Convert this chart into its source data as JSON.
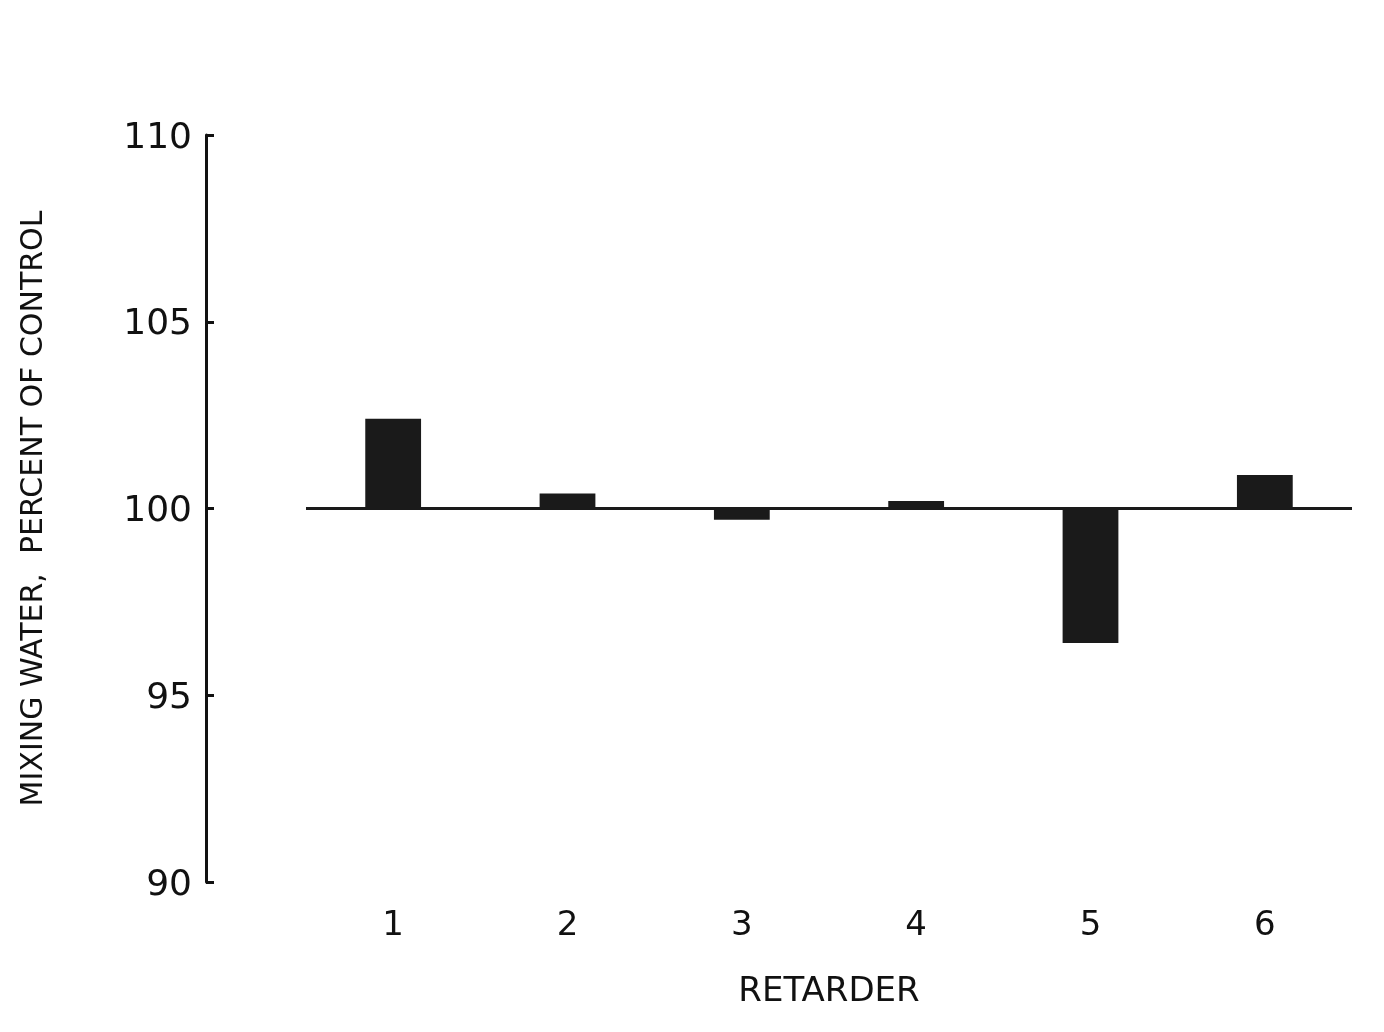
{
  "chart_data": {
    "type": "bar",
    "xlabel": "RETARDER",
    "ylabel": "MIXING WATER,  PERCENT OF CONTROL",
    "categories": [
      "1",
      "2",
      "3",
      "4",
      "5",
      "6"
    ],
    "base": [
      100,
      100,
      100,
      100,
      100,
      100
    ],
    "values": [
      2.4,
      0.4,
      -0.3,
      0.2,
      -3.6,
      0.9
    ],
    "color": "#1a1a1a",
    "ylim": [
      90,
      110
    ],
    "yticks": [
      90,
      95,
      100,
      105,
      110
    ],
    "ref_lines": [
      {
        "axis": "y",
        "value": 100,
        "color": "#1a1a1a"
      }
    ],
    "grid": false
  }
}
